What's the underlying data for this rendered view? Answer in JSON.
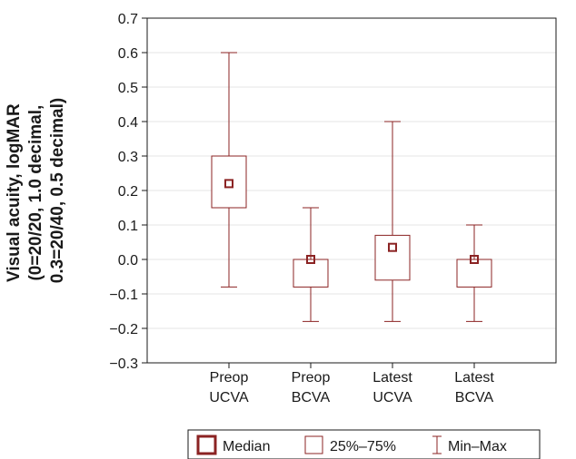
{
  "chart_data": {
    "type": "box",
    "ylabel_lines": [
      "Visual acuity, logMAR",
      "(0=20/20, 1.0 decimal,",
      "0.3=20/40, 0.5 decimal)"
    ],
    "ylim": [
      -0.3,
      0.7
    ],
    "yticks": [
      0.7,
      0.6,
      0.5,
      0.4,
      0.3,
      0.2,
      0.1,
      0.0,
      -0.1,
      -0.2,
      -0.3
    ],
    "ytick_labels": [
      "0.7",
      "0.6",
      "0.5",
      "0.4",
      "0.3",
      "0.2",
      "0.1",
      "0.0",
      "−0.1",
      "−0.2",
      "−0.3"
    ],
    "grid": true,
    "color": "#8b2323",
    "categories": [
      {
        "line1": "Preop",
        "line2": "UCVA",
        "min": -0.08,
        "q1": 0.15,
        "median": 0.22,
        "q3": 0.3,
        "max": 0.6
      },
      {
        "line1": "Preop",
        "line2": "BCVA",
        "min": -0.18,
        "q1": -0.08,
        "median": 0.0,
        "q3": 0.0,
        "max": 0.15
      },
      {
        "line1": "Latest",
        "line2": "UCVA",
        "min": -0.18,
        "q1": -0.06,
        "median": 0.035,
        "q3": 0.07,
        "max": 0.4
      },
      {
        "line1": "Latest",
        "line2": "BCVA",
        "min": -0.18,
        "q1": -0.08,
        "median": 0.0,
        "q3": 0.0,
        "max": 0.1
      }
    ],
    "legend": {
      "position": "bottom",
      "median_label": "Median",
      "box_label": "25%–75%",
      "whisker_label": "Min–Max"
    }
  }
}
